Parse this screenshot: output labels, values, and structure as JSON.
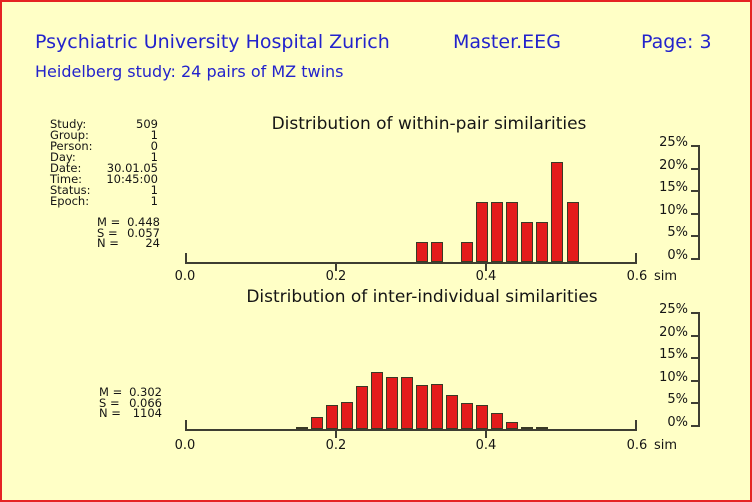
{
  "header": {
    "title": "Psychiatric University Hospital Zurich",
    "app": "Master.EEG",
    "page_label": "Page: 3",
    "subtitle": "Heidelberg study: 24 pairs of MZ twins"
  },
  "colors": {
    "background": "#FFFFC6",
    "frame_border": "#E52323",
    "header_text": "#2323CC",
    "chart_text": "#151515",
    "bar_fill": "#E41B1B",
    "bar_outline": "#3A3A26",
    "axis": "#3E3E32"
  },
  "metadata": {
    "rows": [
      {
        "label": "Study:",
        "value": "509"
      },
      {
        "label": "Group:",
        "value": "1"
      },
      {
        "label": "Person:",
        "value": "0"
      },
      {
        "label": "Day:",
        "value": "1"
      },
      {
        "label": "Date:",
        "value": "30.01.05"
      },
      {
        "label": "Time:",
        "value": "10:45:00"
      },
      {
        "label": "Status:",
        "value": "1"
      },
      {
        "label": "Epoch:",
        "value": "1"
      }
    ]
  },
  "chart_data": [
    {
      "type": "bar",
      "title": "Distribution of within-pair similarities",
      "xlabel": "sim",
      "x_ticks": [
        "0.0",
        "0.2",
        "0.4",
        "0.6"
      ],
      "x_tick_values": [
        0.0,
        0.2,
        0.4,
        0.6
      ],
      "x_range": [
        0.0,
        0.6
      ],
      "y_ticks": [
        "25%",
        "20%",
        "15%",
        "10%",
        "5%",
        "0%"
      ],
      "y_range_pct": [
        0,
        25
      ],
      "legend": "none",
      "grid": false,
      "bin_width": 0.02,
      "x": [
        0.32,
        0.34,
        0.38,
        0.4,
        0.42,
        0.44,
        0.46,
        0.48,
        0.5,
        0.52
      ],
      "counts": [
        1,
        1,
        1,
        3,
        3,
        3,
        2,
        2,
        5,
        3
      ],
      "values_pct": [
        4.17,
        4.17,
        4.17,
        12.5,
        12.5,
        12.5,
        8.33,
        8.33,
        20.83,
        12.5
      ],
      "stats": {
        "m_label": "M =",
        "m": "0.448",
        "s_label": "S =",
        "s": "0.057",
        "n_label": "N =",
        "n": "24"
      }
    },
    {
      "type": "bar",
      "title": "Distribution of inter-individual similarities",
      "xlabel": "sim",
      "x_ticks": [
        "0.0",
        "0.2",
        "0.4",
        "0.6"
      ],
      "x_tick_values": [
        0.0,
        0.2,
        0.4,
        0.6
      ],
      "x_range": [
        0.0,
        0.6
      ],
      "y_ticks": [
        "25%",
        "20%",
        "15%",
        "10%",
        "5%",
        "0%"
      ],
      "y_range_pct": [
        0,
        25
      ],
      "legend": "none",
      "grid": false,
      "bin_width": 0.02,
      "x": [
        0.16,
        0.18,
        0.2,
        0.22,
        0.24,
        0.26,
        0.28,
        0.3,
        0.32,
        0.34,
        0.36,
        0.38,
        0.4,
        0.42,
        0.44,
        0.46,
        0.48
      ],
      "values_pct": [
        0.5,
        2.7,
        5.2,
        5.9,
        9.5,
        12.6,
        11.4,
        11.6,
        9.7,
        10.0,
        7.5,
        5.7,
        5.3,
        3.5,
        1.6,
        0.5,
        0.3
      ],
      "stats": {
        "m_label": "M =",
        "m": "0.302",
        "s_label": "S =",
        "s": "0.066",
        "n_label": "N =",
        "n": "1104"
      }
    }
  ]
}
